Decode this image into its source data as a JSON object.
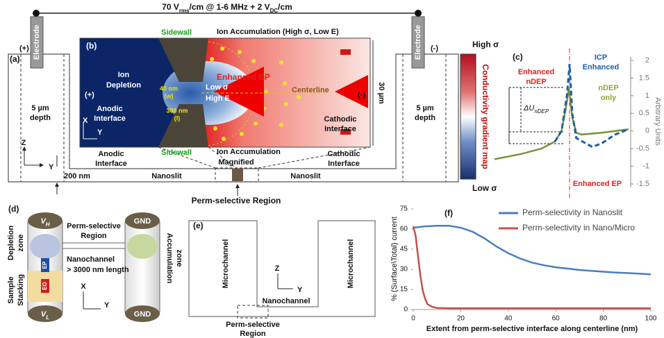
{
  "field": [
    "70 V",
    "rms",
    "/cm @ 1-6 MHz + 2 V",
    "DC",
    "/cm"
  ],
  "panel_a": {
    "label": "(a)",
    "plus": "(+)",
    "minus": "(-)",
    "electrode_left": "Electrode",
    "electrode_right": "Electrode",
    "depth_left": [
      "5 µm",
      "depth"
    ],
    "depth_right": [
      "5 µm",
      "depth"
    ],
    "axes": [
      "Z",
      "Y"
    ],
    "gap": "200 nm",
    "nanoslit_left": "Nanoslit",
    "nanoslit_right": "Nanoslit",
    "anodic": [
      "Anodic",
      "Interface"
    ],
    "cathodic": [
      "Cathodic",
      "Interface"
    ],
    "magnified": "Magnified",
    "region": "Perm-selective Region"
  },
  "panel_b": {
    "label": "(b)",
    "sidewall_top": "Sidewall",
    "sidewall_bottom": "Sidewall",
    "accum_top": "Ion Accumulation (High σ, Low E)",
    "accum_bottom": "Ion Accumulation",
    "depletion": [
      "Ion",
      "Depletion"
    ],
    "plus": "(+)",
    "minus": "(-)",
    "width": [
      "40 nm",
      "(w)"
    ],
    "length": [
      "300 nm",
      "(l)"
    ],
    "low_sigma": "Low σ",
    "high_e": "High E",
    "enhanced_ep": "Enhanced EP",
    "centerline": "Centerline",
    "anodic": [
      "Anodic",
      "Interface"
    ],
    "cathodic": [
      "Cathodic",
      "Interface"
    ],
    "axes": [
      "X",
      "Y"
    ],
    "height": "30 µm"
  },
  "colorbar": {
    "top": "High σ",
    "title": "Conductivity gradient map",
    "bottom": "Low σ"
  },
  "panel_d": {
    "label": "(d)",
    "vh": [
      "V",
      "H"
    ],
    "vl": [
      "V",
      "L"
    ],
    "gnd_top": "GND",
    "gnd_bottom": "GND",
    "depletion": [
      "Depletion",
      "zone"
    ],
    "stacking": [
      "Sample",
      "Stacking"
    ],
    "accumulation": [
      "Accumulation",
      "zone"
    ],
    "region": [
      "Perm-selective",
      "Region"
    ],
    "nanochannel": [
      "Nanochannel",
      "> 3000 nm length"
    ],
    "ep": "EP",
    "eo": "EO",
    "axes": [
      "X",
      "Y"
    ]
  },
  "panel_e": {
    "label": "(e)",
    "micro_left": "Microchannel",
    "micro_right": "Microchannel",
    "axes": [
      "Z",
      "Y"
    ],
    "nanochannel": "Nanochannel",
    "region": [
      "Perm-selective",
      "Region"
    ]
  },
  "chart_data": [
    {
      "type": "line",
      "label": "(c)",
      "y_label": "Arbitrary Units",
      "annotations": {
        "icp": [
          "ICP",
          "Enhanced"
        ],
        "enhanced_ndep": [
          "Enhanced",
          "nDEP"
        ],
        "ndep_only": [
          "nDEP",
          "only"
        ],
        "delta": [
          "ΔU",
          "nDEP"
        ],
        "enhanced_ep": "Enhanced EP"
      },
      "xlim": [
        0,
        10
      ],
      "ylim": [
        -1.6,
        2.1
      ],
      "yticks": [
        2,
        1.5,
        1,
        0.5,
        0,
        -0.5,
        -1,
        -1.5
      ],
      "series": [
        {
          "color": "#77933c",
          "dash": false,
          "x": [
            0,
            2,
            3.5,
            4.5,
            5,
            5.3,
            5.55,
            5.8,
            6.1,
            6.5,
            8,
            10
          ],
          "values": [
            -0.8,
            -0.65,
            -0.5,
            -0.3,
            0,
            0.6,
            1.2,
            0.4,
            -0.05,
            -0.1,
            -0.05,
            0.05
          ]
        },
        {
          "color": "#1f5fa8",
          "dash": true,
          "x": [
            4.5,
            5,
            5.4,
            5.6,
            5.8,
            6.1,
            6.8,
            7.3,
            8,
            9,
            10
          ],
          "values": [
            -0.3,
            0,
            1,
            1.9,
            0.5,
            -0.2,
            -0.35,
            -0.45,
            -0.35,
            -0.1,
            0.05
          ]
        }
      ]
    },
    {
      "type": "line",
      "label": "(f)",
      "x_label": "Extent from perm-selective interface along centerline (nm)",
      "y_label": "% (Surface\\Total) current",
      "xlim": [
        0,
        100
      ],
      "xticks": [
        0,
        20,
        40,
        60,
        80,
        100
      ],
      "ylim": [
        0,
        75
      ],
      "yticks": [
        0,
        15,
        30,
        45,
        60,
        75
      ],
      "legend": "top-right",
      "series": [
        {
          "name": "Perm-selectivity in Nanoslit",
          "color": "#4a7ebb",
          "dash": false,
          "x": [
            0,
            5,
            10,
            15,
            20,
            25,
            30,
            35,
            40,
            45,
            50,
            55,
            60,
            65,
            70,
            75,
            80,
            85,
            90,
            95,
            100
          ],
          "values": [
            61,
            62,
            62.5,
            62.5,
            61,
            58,
            53,
            47,
            42,
            38,
            35,
            33,
            31.5,
            30.5,
            29.5,
            28.8,
            28.2,
            27.6,
            27.2,
            26.8,
            26.3
          ]
        },
        {
          "name": "Perm-selectivity in Nano/Micro",
          "color": "#c0504d",
          "dash": false,
          "x": [
            0,
            1,
            2,
            3,
            4,
            5,
            6,
            8,
            10,
            15,
            20,
            40,
            60,
            80,
            100
          ],
          "values": [
            62,
            55,
            40,
            25,
            14,
            8,
            4,
            2,
            1.2,
            1,
            1,
            1,
            1,
            1,
            1
          ]
        }
      ]
    }
  ]
}
